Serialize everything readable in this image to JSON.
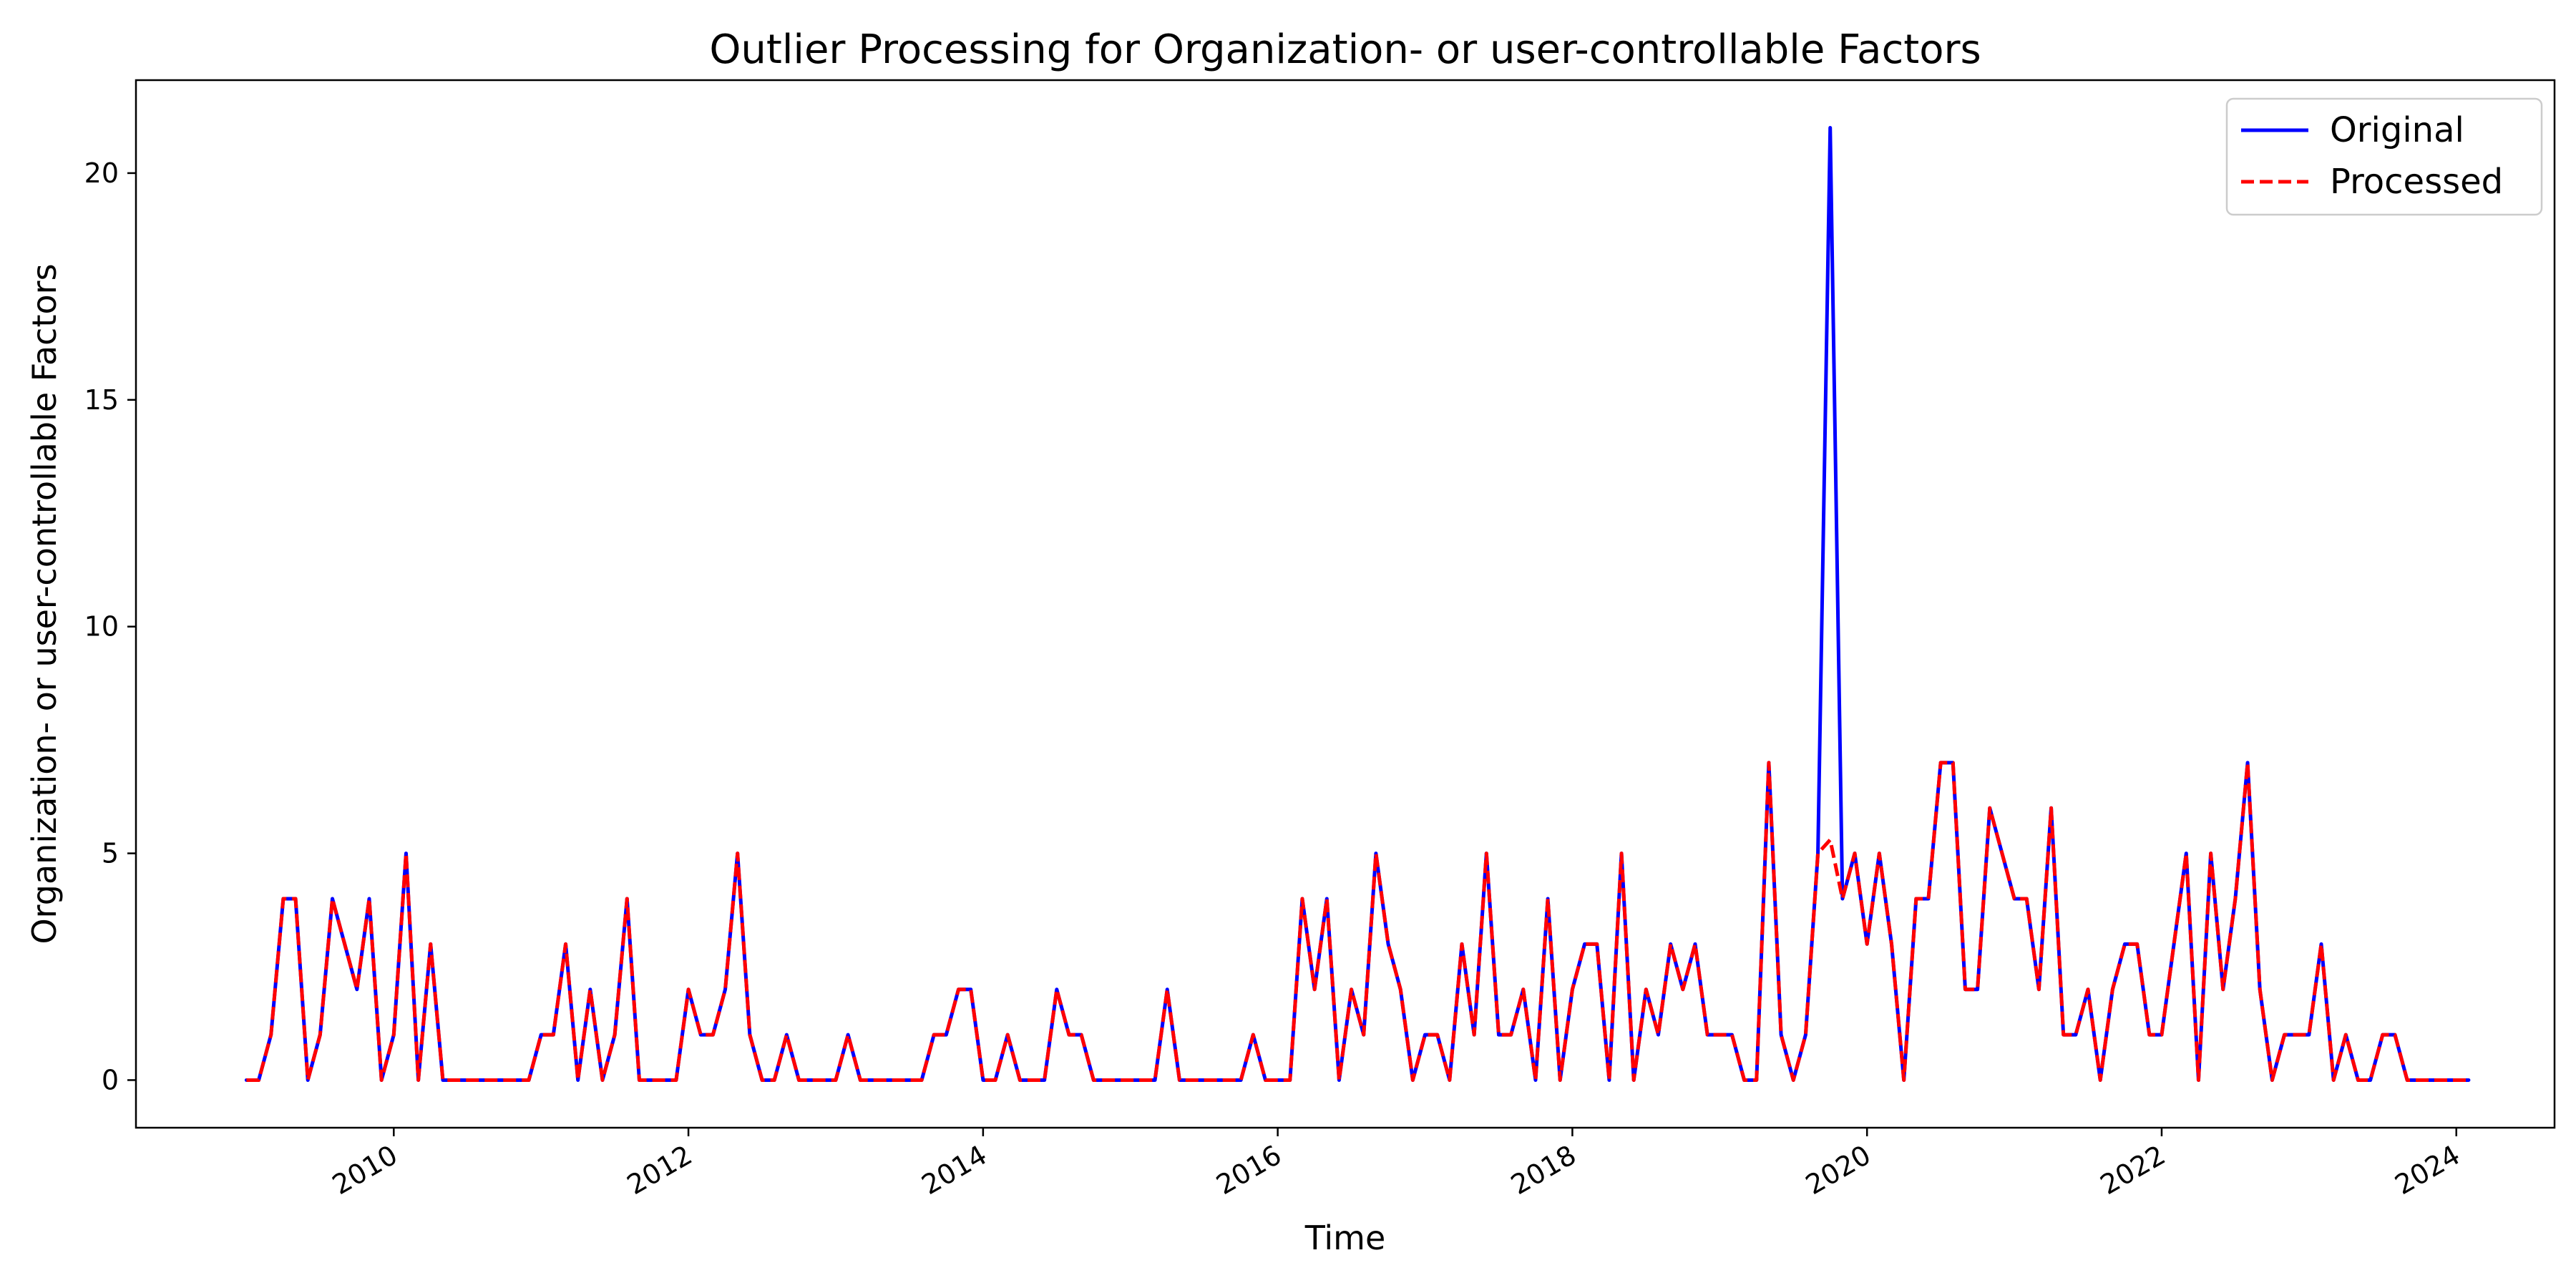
{
  "chart_data": {
    "type": "line",
    "title": "Outlier Processing for Organization- or user-controllable Factors",
    "xlabel": "Time",
    "ylabel": "Organization- or user-controllable Factors",
    "x_start": "2009-01",
    "x_end": "2024-01",
    "xlim": [
      "2008-04",
      "2024-09"
    ],
    "ylim": [
      -1.05,
      22.05
    ],
    "yticks": [
      0,
      5,
      10,
      15,
      20
    ],
    "xticks": [
      "2010",
      "2012",
      "2014",
      "2016",
      "2018",
      "2020",
      "2022",
      "2024"
    ],
    "grid": false,
    "legend_position": "top-right",
    "series": [
      {
        "name": "Original",
        "color": "#0000ff",
        "style": "solid",
        "values": [
          0,
          0,
          1,
          4,
          4,
          0,
          1,
          4,
          3,
          2,
          4,
          0,
          1,
          5,
          0,
          3,
          0,
          0,
          0,
          0,
          0,
          0,
          0,
          0,
          1,
          1,
          3,
          0,
          2,
          0,
          1,
          4,
          0,
          0,
          0,
          0,
          2,
          1,
          1,
          2,
          5,
          1,
          0,
          0,
          1,
          0,
          0,
          0,
          0,
          1,
          0,
          0,
          0,
          0,
          0,
          0,
          1,
          1,
          2,
          2,
          0,
          0,
          1,
          0,
          0,
          0,
          2,
          1,
          1,
          0,
          0,
          0,
          0,
          0,
          0,
          2,
          0,
          0,
          0,
          0,
          0,
          0,
          1,
          0,
          0,
          0,
          4,
          2,
          4,
          0,
          2,
          1,
          5,
          3,
          2,
          0,
          1,
          1,
          0,
          3,
          1,
          5,
          1,
          1,
          2,
          0,
          4,
          0,
          2,
          3,
          3,
          0,
          5,
          0,
          2,
          1,
          3,
          2,
          3,
          1,
          1,
          1,
          0,
          0,
          7,
          1,
          0,
          1,
          5,
          21,
          4,
          5,
          3,
          5,
          3,
          0,
          4,
          4,
          7,
          7,
          2,
          2,
          6,
          5,
          4,
          4,
          2,
          6,
          1,
          1,
          2,
          0,
          2,
          3,
          3,
          1,
          1,
          3,
          5,
          0,
          5,
          2,
          4,
          7,
          2,
          0,
          1,
          1,
          1,
          3,
          0,
          1,
          0,
          0,
          1,
          1,
          0,
          0,
          0,
          0,
          0,
          0
        ]
      },
      {
        "name": "Processed",
        "color": "#ff0000",
        "style": "dashed",
        "values": [
          0,
          0,
          1,
          4,
          4,
          0,
          1,
          4,
          3,
          2,
          4,
          0,
          1,
          5,
          0,
          3,
          0,
          0,
          0,
          0,
          0,
          0,
          0,
          0,
          1,
          1,
          3,
          0,
          2,
          0,
          1,
          4,
          0,
          0,
          0,
          0,
          2,
          1,
          1,
          2,
          5,
          1,
          0,
          0,
          1,
          0,
          0,
          0,
          0,
          1,
          0,
          0,
          0,
          0,
          0,
          0,
          1,
          1,
          2,
          2,
          0,
          0,
          1,
          0,
          0,
          0,
          2,
          1,
          1,
          0,
          0,
          0,
          0,
          0,
          0,
          2,
          0,
          0,
          0,
          0,
          0,
          0,
          1,
          0,
          0,
          0,
          4,
          2,
          4,
          0,
          2,
          1,
          5,
          3,
          2,
          0,
          1,
          1,
          0,
          3,
          1,
          5,
          1,
          1,
          2,
          0,
          4,
          0,
          2,
          3,
          3,
          0,
          5,
          0,
          2,
          1,
          3,
          2,
          3,
          1,
          1,
          1,
          0,
          0,
          7,
          1,
          0,
          1,
          5,
          5.3,
          4,
          5,
          3,
          5,
          3,
          0,
          4,
          4,
          7,
          7,
          2,
          2,
          6,
          5,
          4,
          4,
          2,
          6,
          1,
          1,
          2,
          0,
          2,
          3,
          3,
          1,
          1,
          3,
          5,
          0,
          5,
          2,
          4,
          7,
          2,
          0,
          1,
          1,
          1,
          3,
          0,
          1,
          0,
          0,
          1,
          1,
          0,
          0,
          0,
          0,
          0,
          0
        ]
      }
    ]
  }
}
